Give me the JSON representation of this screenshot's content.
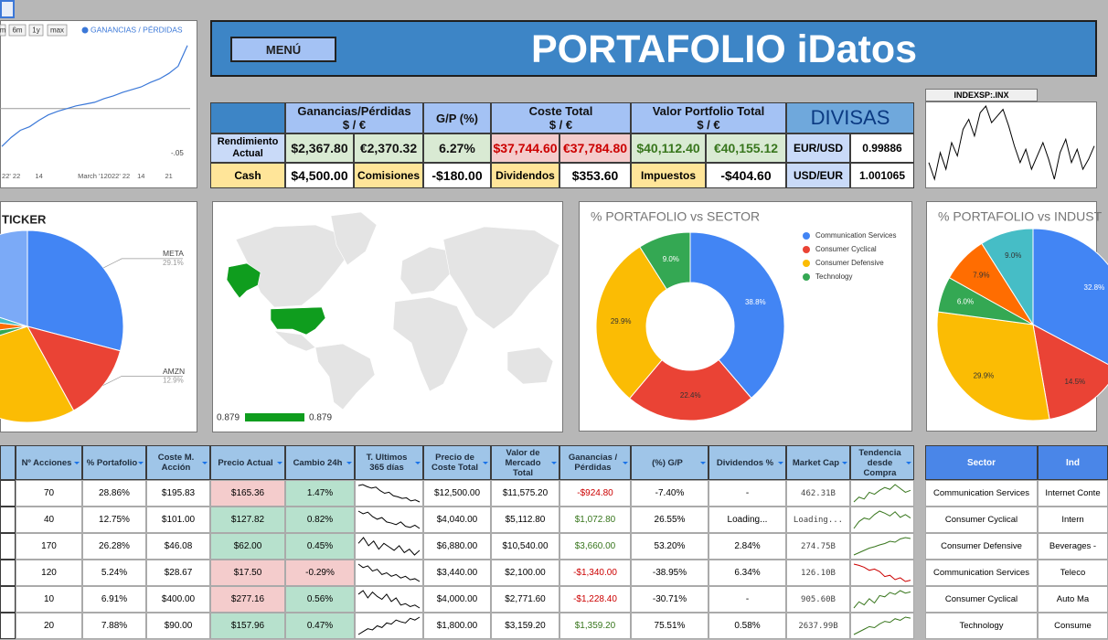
{
  "header": {
    "menu": "MENÚ",
    "title": "PORTAFOLIO iDatos"
  },
  "summary": {
    "headers": [
      [
        "Ganancias/Pérdidas",
        "$ / €"
      ],
      [
        "G/P (%)"
      ],
      [
        "Coste Total",
        "$ / €"
      ],
      [
        "Valor Portfolio Total",
        "$ / €"
      ]
    ],
    "rows": [
      [
        "Rendimiento Actual",
        "$2,367.80",
        "€2,370.32",
        "6.27%",
        "$37,744.60",
        "€37,784.80",
        "$40,112.40",
        "€40,155.12"
      ],
      [
        "Cash",
        "$4,500.00",
        "Comisiones",
        "-$180.00",
        "Dividendos",
        "$353.60",
        "Impuestos",
        "-$404.60"
      ]
    ]
  },
  "divisas": {
    "title": "DIVISAS",
    "rows": [
      [
        "EUR/USD",
        "0.99886"
      ],
      [
        "USD/EUR",
        "1.001065"
      ]
    ]
  },
  "chart_data": [
    {
      "type": "line",
      "buttons": [
        "m",
        "6m",
        "1y",
        "max"
      ],
      "legend": "GANANCIAS / PÉRDIDAS",
      "color": "#3b78d8",
      "categories": [
        null,
        "22' 22",
        null,
        null,
        "14",
        null,
        null,
        null,
        null,
        null,
        null,
        "March '12022' 22",
        null,
        null,
        null,
        "14",
        null,
        null,
        "21",
        null,
        null
      ],
      "values": [
        -0.042,
        -0.032,
        -0.024,
        -0.02,
        -0.013,
        -0.007,
        -0.003,
        0.0,
        0.003,
        0.005,
        0.007,
        0.011,
        0.014,
        0.018,
        0.021,
        0.024,
        0.029,
        0.033,
        0.039,
        0.047,
        0.07
      ],
      "ylim": [
        -0.06,
        0.09
      ],
      "yticks": [
        {
          "value": -0.05,
          "label": "-.05"
        }
      ]
    },
    {
      "type": "sparkline",
      "title": "INDEXSP:.INX",
      "color": "#000000",
      "values": [
        3950,
        3900,
        3980,
        3930,
        4010,
        3970,
        4050,
        4080,
        4030,
        4100,
        4120,
        4070,
        4090,
        4110,
        4060,
        4000,
        3950,
        3990,
        3930,
        3970,
        4010,
        3960,
        3900,
        3980,
        4020,
        3950,
        3990,
        3930,
        3960,
        4000
      ]
    },
    {
      "type": "pie",
      "title": "TICKER",
      "categories": [
        "META",
        "AMZN",
        null,
        null,
        null,
        null,
        null
      ],
      "values": [
        29.1,
        12.9,
        28,
        3,
        4,
        3,
        20
      ],
      "value_labels": [
        "29.1%",
        "12.9%",
        null,
        null,
        null,
        null,
        null
      ],
      "colors": [
        "#4285f4",
        "#ea4335",
        "#fbbc04",
        "#34a853",
        "#ff6d01",
        "#46bdc6",
        "#7baaf7"
      ]
    },
    {
      "type": "donut",
      "title": "% PORTAFOLIO vs SECTOR",
      "categories": [
        "Communication Services",
        "Consumer Cyclical",
        "Consumer Defensive",
        "Technology"
      ],
      "values": [
        38.8,
        22.4,
        29.9,
        9.0
      ],
      "value_labels": [
        "38.8%",
        "22.4%",
        "29.9%",
        "9.0%"
      ],
      "colors": [
        "#4285f4",
        "#ea4335",
        "#fbbc04",
        "#34a853"
      ]
    },
    {
      "type": "pie",
      "title": "% PORTAFOLIO vs INDUST",
      "values": [
        32.8,
        14.5,
        29.9,
        6.0,
        7.9,
        9.0
      ],
      "value_labels": [
        "32.8%",
        "14.5%",
        "29.9%",
        "6.0%",
        "7.9%",
        "9.0%"
      ],
      "colors": [
        "#4285f4",
        "#ea4335",
        "#fbbc04",
        "#34a853",
        "#ff6d01",
        "#46bdc6"
      ]
    },
    {
      "type": "map",
      "color": "#0f9d1e",
      "colorbar": [
        0.879,
        0.879
      ]
    }
  ],
  "holdings": {
    "headers": [
      "Nº Acciones",
      "% Portafolio",
      "Coste M. Acción",
      "Precio Actual",
      "Cambio 24h",
      "T. Ultimos 365 días",
      "Precio de Coste Total",
      "Valor de Mercado Total",
      "Ganancias / Pérdidas",
      "(%) G/P",
      "Dividendos %",
      "Market Cap",
      "Tendencia desde Compra"
    ],
    "rows": [
      {
        "cells": [
          "70",
          "28.86%",
          "$195.83",
          "$165.36",
          "1.47%",
          "$12,500.00",
          "$11,575.20",
          "-$924.80",
          "-7.40%",
          "-",
          "462.31B"
        ],
        "spark365": [
          60,
          62,
          58,
          55,
          57,
          50,
          45,
          47,
          40,
          38,
          35,
          36,
          30,
          32,
          28
        ],
        "trend": [
          30,
          35,
          33,
          40,
          38,
          42,
          45,
          43,
          48,
          44,
          40,
          42
        ]
      },
      {
        "cells": [
          "40",
          "12.75%",
          "$101.00",
          "$127.82",
          "0.82%",
          "$4,040.00",
          "$5,112.80",
          "$1,072.80",
          "26.55%",
          "Loading...",
          "Loading..."
        ],
        "spark365": [
          70,
          65,
          68,
          60,
          55,
          58,
          50,
          48,
          45,
          50,
          42,
          40,
          44,
          38
        ],
        "trend": [
          20,
          30,
          35,
          33,
          40,
          45,
          42,
          38,
          44,
          36,
          40,
          35
        ]
      },
      {
        "cells": [
          "170",
          "26.28%",
          "$46.08",
          "$62.00",
          "0.45%",
          "$6,880.00",
          "$10,540.00",
          "$3,660.00",
          "53.20%",
          "2.84%",
          "274.75B"
        ],
        "spark365": [
          50,
          55,
          48,
          52,
          45,
          50,
          47,
          44,
          48,
          42,
          45,
          40,
          44
        ],
        "trend": [
          10,
          15,
          20,
          25,
          28,
          32,
          35,
          40,
          38,
          45,
          48,
          46
        ]
      },
      {
        "cells": [
          "120",
          "5.24%",
          "$28.67",
          "$17.50",
          "-0.29%",
          "$3,440.00",
          "$2,100.00",
          "-$1,340.00",
          "-38.95%",
          "6.34%",
          "126.10B"
        ],
        "spark365": [
          80,
          70,
          75,
          60,
          65,
          50,
          55,
          45,
          50,
          40,
          45,
          35,
          38,
          30
        ],
        "trend": [
          50,
          48,
          45,
          40,
          42,
          38,
          30,
          32,
          25,
          28,
          22,
          24
        ]
      },
      {
        "cells": [
          "10",
          "6.91%",
          "$400.00",
          "$277.16",
          "0.56%",
          "$4,000.00",
          "$2,771.60",
          "-$1,228.40",
          "-30.71%",
          "-",
          "905.60B"
        ],
        "spark365": [
          55,
          60,
          50,
          58,
          52,
          48,
          55,
          45,
          50,
          40,
          42,
          38,
          40,
          36
        ],
        "trend": [
          20,
          30,
          25,
          35,
          28,
          40,
          38,
          45,
          42,
          48,
          44,
          46
        ]
      },
      {
        "cells": [
          "20",
          "7.88%",
          "$90.00",
          "$157.96",
          "0.47%",
          "$1,800.00",
          "$3,159.20",
          "$1,359.20",
          "75.51%",
          "0.58%",
          "2637.99B"
        ],
        "spark365": [
          30,
          35,
          40,
          38,
          45,
          42,
          50,
          48,
          55,
          52,
          50,
          58,
          55,
          60
        ],
        "trend": [
          15,
          20,
          25,
          30,
          28,
          35,
          40,
          38,
          45,
          42,
          48,
          46
        ]
      }
    ]
  },
  "sectors": {
    "headers": [
      "Sector",
      "Ind"
    ],
    "rows": [
      [
        "Communication Services",
        "Internet Conte"
      ],
      [
        "Consumer Cyclical",
        "Intern"
      ],
      [
        "Consumer Defensive",
        "Beverages -"
      ],
      [
        "Communication Services",
        "Teleco"
      ],
      [
        "Consumer Cyclical",
        "Auto Ma"
      ],
      [
        "Technology",
        "Consume"
      ]
    ]
  }
}
